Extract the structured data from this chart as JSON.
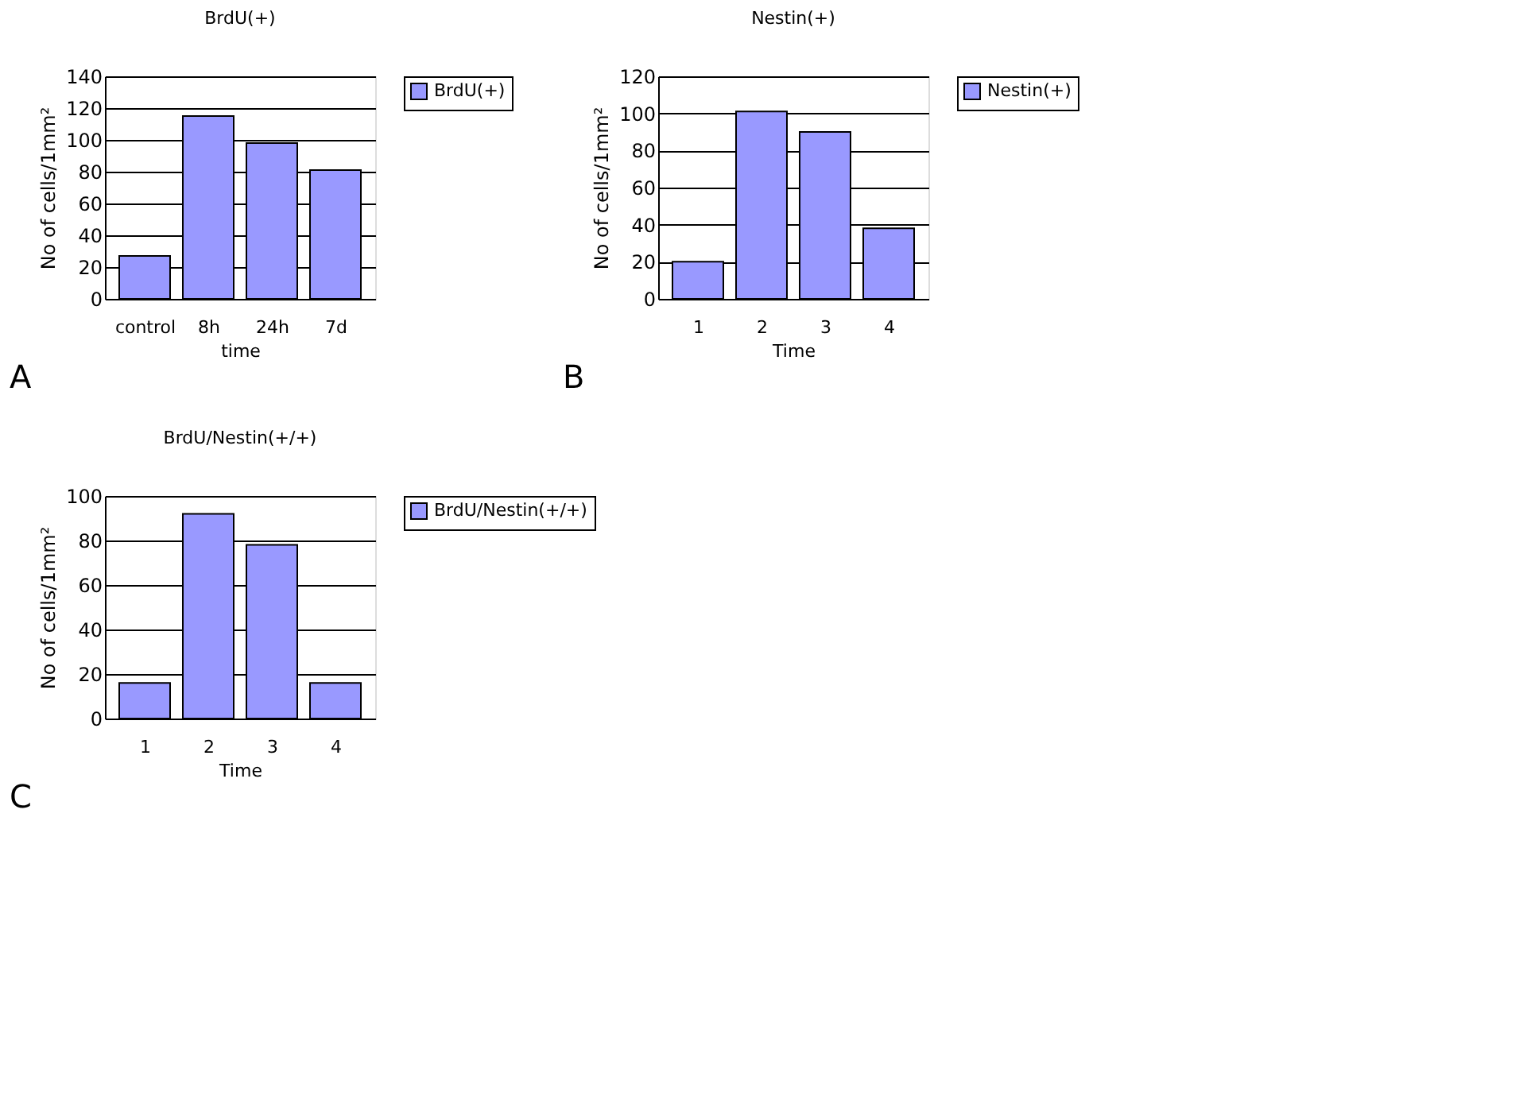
{
  "chart_data": [
    {
      "type": "bar",
      "title": "BrdU(+)",
      "xlabel": "time",
      "ylabel": "No of cells/1mm²",
      "categories": [
        "control",
        "8h",
        "24h",
        "7d"
      ],
      "series": [
        {
          "name": "BrdU(+)",
          "color": "#9999ff",
          "values": [
            27,
            115,
            98,
            81
          ]
        }
      ],
      "ylim": [
        0,
        140
      ],
      "yticks": [
        0,
        20,
        40,
        60,
        80,
        100,
        120,
        140
      ],
      "grid": "y",
      "legend": "right",
      "annotations": [
        "A"
      ]
    },
    {
      "type": "bar",
      "title": "Nestin(+)",
      "xlabel": "Time",
      "ylabel": "No of cells/1mm²",
      "categories": [
        "1",
        "2",
        "3",
        "4"
      ],
      "series": [
        {
          "name": "Nestin(+)",
          "color": "#9999ff",
          "values": [
            20,
            101,
            90,
            38
          ]
        }
      ],
      "ylim": [
        0,
        120
      ],
      "yticks": [
        0,
        20,
        40,
        60,
        80,
        100,
        120
      ],
      "grid": "y",
      "legend": "right",
      "annotations": [
        "B"
      ]
    },
    {
      "type": "bar",
      "title": "BrdU/Nestin(+/+)",
      "xlabel": "Time",
      "ylabel": "No of cells/1mm²",
      "categories": [
        "1",
        "2",
        "3",
        "4"
      ],
      "series": [
        {
          "name": "BrdU/Nestin(+/+)",
          "color": "#9999ff",
          "values": [
            16,
            92,
            78,
            16
          ]
        }
      ],
      "ylim": [
        0,
        100
      ],
      "yticks": [
        0,
        20,
        40,
        60,
        80,
        100
      ],
      "grid": "y",
      "legend": "right",
      "annotations": [
        "C"
      ]
    }
  ]
}
